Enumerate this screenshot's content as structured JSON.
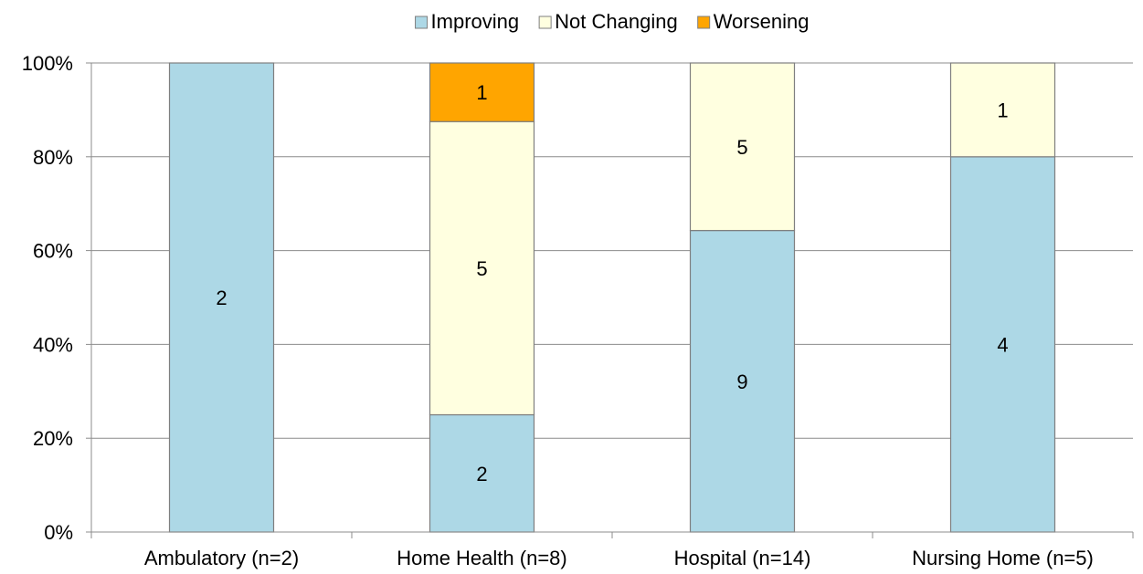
{
  "chart_data": {
    "type": "bar",
    "stacked": true,
    "percent_stacked": true,
    "categories": [
      "Ambulatory (n=2)",
      "Home Health (n=8)",
      "Hospital (n=14)",
      "Nursing Home (n=5)"
    ],
    "series": [
      {
        "name": "Improving",
        "values": [
          2,
          2,
          9,
          4
        ],
        "color": "#ADD8E6",
        "labels": [
          "2",
          "2",
          "9",
          "4"
        ]
      },
      {
        "name": "Not Changing",
        "values": [
          0,
          5,
          5,
          1
        ],
        "color": "#FFFFE0",
        "labels": [
          "",
          "5",
          "5",
          "1"
        ]
      },
      {
        "name": "Worsening",
        "values": [
          0,
          1,
          0,
          0
        ],
        "color": "#FFA500",
        "labels": [
          "",
          "1",
          "",
          ""
        ]
      }
    ],
    "ylim": [
      0,
      100
    ],
    "yticks": [
      "0%",
      "20%",
      "40%",
      "60%",
      "80%",
      "100%"
    ],
    "grid": true,
    "legend_position": "top"
  }
}
